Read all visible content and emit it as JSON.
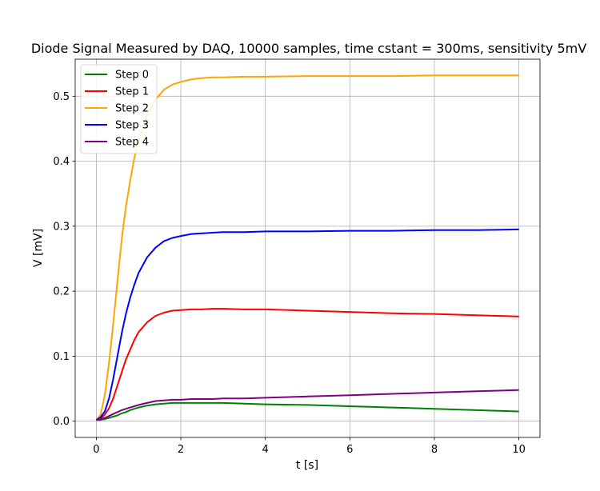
{
  "chart_data": {
    "type": "line",
    "title": "Diode Signal Measured by DAQ,  10000 samples, time cstant = 300ms, sensitivity 5mV",
    "xlabel": "t  [s]",
    "ylabel": "V  [mV]",
    "xlim": [
      -0.5,
      10.5
    ],
    "ylim": [
      -0.025,
      0.557
    ],
    "xticks": [
      0,
      2,
      4,
      6,
      8,
      10
    ],
    "xtick_labels": [
      "0",
      "2",
      "4",
      "6",
      "8",
      "10"
    ],
    "yticks": [
      0.0,
      0.1,
      0.2,
      0.3,
      0.4,
      0.5
    ],
    "ytick_labels": [
      "0.0",
      "0.1",
      "0.2",
      "0.3",
      "0.4",
      "0.5"
    ],
    "grid": true,
    "legend_position": "upper-left",
    "x": [
      0,
      0.1,
      0.2,
      0.3,
      0.4,
      0.5,
      0.6,
      0.7,
      0.8,
      0.9,
      1.0,
      1.2,
      1.4,
      1.6,
      1.8,
      2.0,
      2.25,
      2.5,
      2.75,
      3.0,
      3.5,
      4.0,
      5.0,
      6.0,
      7.0,
      8.0,
      9.0,
      10.0
    ],
    "series": [
      {
        "name": "Step 0",
        "color": "#008000",
        "values": [
          0.002,
          0.002,
          0.003,
          0.005,
          0.007,
          0.009,
          0.012,
          0.014,
          0.017,
          0.019,
          0.021,
          0.024,
          0.026,
          0.027,
          0.028,
          0.028,
          0.028,
          0.028,
          0.028,
          0.028,
          0.027,
          0.026,
          0.025,
          0.023,
          0.021,
          0.019,
          0.017,
          0.015
        ]
      },
      {
        "name": "Step 1",
        "color": "#ff0000",
        "values": [
          0.002,
          0.004,
          0.01,
          0.02,
          0.035,
          0.055,
          0.075,
          0.095,
          0.11,
          0.125,
          0.137,
          0.152,
          0.162,
          0.167,
          0.17,
          0.171,
          0.172,
          0.172,
          0.173,
          0.173,
          0.172,
          0.172,
          0.17,
          0.168,
          0.166,
          0.165,
          0.163,
          0.161
        ]
      },
      {
        "name": "Step 2",
        "color": "#ffa500",
        "values": [
          0.002,
          0.01,
          0.04,
          0.09,
          0.15,
          0.215,
          0.28,
          0.33,
          0.37,
          0.405,
          0.432,
          0.47,
          0.495,
          0.51,
          0.518,
          0.522,
          0.526,
          0.528,
          0.529,
          0.529,
          0.53,
          0.53,
          0.531,
          0.531,
          0.531,
          0.532,
          0.532,
          0.532
        ]
      },
      {
        "name": "Step 3",
        "color": "#0000ff",
        "values": [
          0.002,
          0.006,
          0.015,
          0.035,
          0.065,
          0.1,
          0.135,
          0.165,
          0.19,
          0.21,
          0.228,
          0.252,
          0.267,
          0.277,
          0.282,
          0.285,
          0.288,
          0.289,
          0.29,
          0.291,
          0.291,
          0.292,
          0.292,
          0.293,
          0.293,
          0.294,
          0.294,
          0.295
        ]
      },
      {
        "name": "Step 4",
        "color": "#800080",
        "values": [
          0.002,
          0.003,
          0.005,
          0.008,
          0.011,
          0.014,
          0.017,
          0.019,
          0.021,
          0.023,
          0.025,
          0.028,
          0.031,
          0.032,
          0.033,
          0.033,
          0.034,
          0.034,
          0.034,
          0.035,
          0.035,
          0.036,
          0.038,
          0.04,
          0.042,
          0.044,
          0.046,
          0.048
        ]
      }
    ]
  }
}
